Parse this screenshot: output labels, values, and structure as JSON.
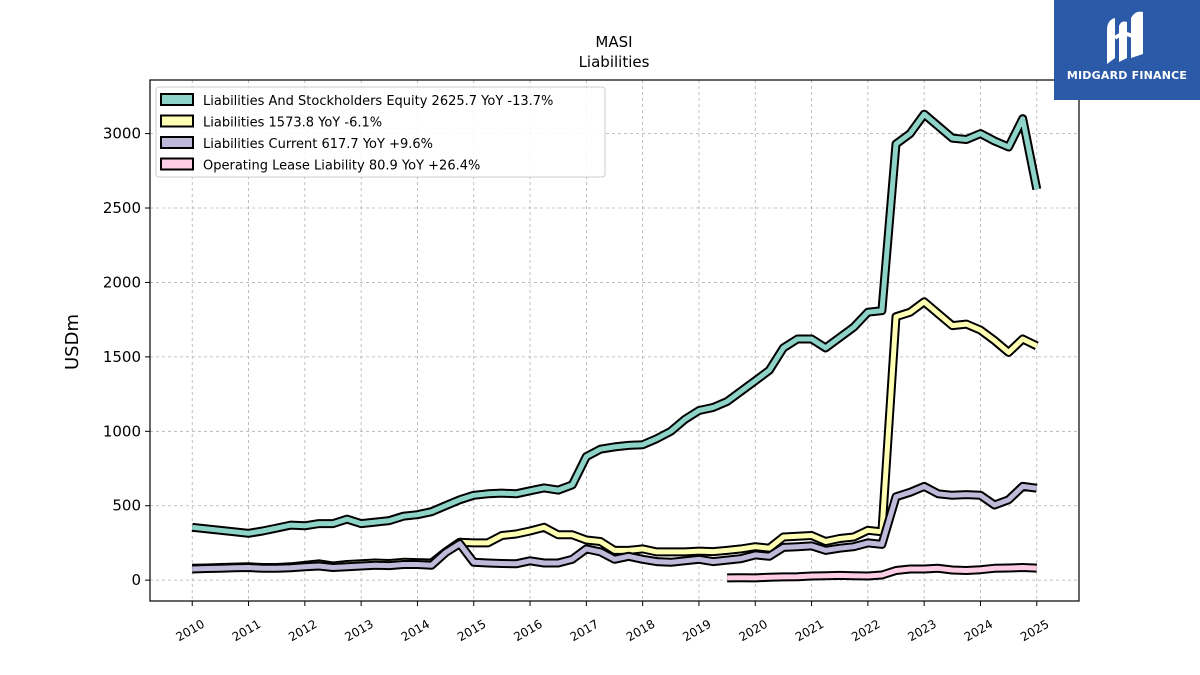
{
  "brand": {
    "name": "MIDGARD FINANCE",
    "color": "#2b5aa8"
  },
  "chart_data": {
    "type": "line",
    "title": "MASI",
    "subtitle": "Liabilities",
    "ylabel": "USDm",
    "xlabel": "",
    "ylim": [
      -140,
      3360
    ],
    "xlim": [
      2009.25,
      2025.75
    ],
    "yticks": [
      0,
      500,
      1000,
      1500,
      2000,
      2500,
      3000
    ],
    "xticks": [
      "2010",
      "2011",
      "2012",
      "2013",
      "2014",
      "2015",
      "2016",
      "2017",
      "2018",
      "2019",
      "2020",
      "2021",
      "2022",
      "2023",
      "2024",
      "2025"
    ],
    "grid": true,
    "legend_position": "top-left",
    "series": [
      {
        "name": "Liabilities And Stockholders Equity",
        "legend_label": "Liabilities And Stockholders Equity  2625.7 YoY -13.7%",
        "color": "#8dd3c7",
        "x": [
          2010.0,
          2010.25,
          2010.5,
          2010.75,
          2011.0,
          2011.25,
          2011.5,
          2011.75,
          2012.0,
          2012.25,
          2012.5,
          2012.75,
          2013.0,
          2013.25,
          2013.5,
          2013.75,
          2014.0,
          2014.25,
          2014.5,
          2014.75,
          2015.0,
          2015.25,
          2015.5,
          2015.75,
          2016.0,
          2016.25,
          2016.5,
          2016.75,
          2017.0,
          2017.25,
          2017.5,
          2017.75,
          2018.0,
          2018.25,
          2018.5,
          2018.75,
          2019.0,
          2019.25,
          2019.5,
          2019.75,
          2020.0,
          2020.25,
          2020.5,
          2020.75,
          2021.0,
          2021.25,
          2021.5,
          2021.75,
          2022.0,
          2022.25,
          2022.5,
          2022.75,
          2023.0,
          2023.25,
          2023.5,
          2023.75,
          2024.0,
          2024.25,
          2024.5,
          2024.75,
          2025.0
        ],
        "values": [
          355,
          345,
          335,
          325,
          315,
          330,
          350,
          370,
          365,
          380,
          380,
          410,
          380,
          390,
          400,
          430,
          440,
          460,
          500,
          540,
          570,
          580,
          585,
          580,
          600,
          620,
          605,
          640,
          830,
          880,
          895,
          905,
          910,
          950,
          1000,
          1080,
          1140,
          1160,
          1200,
          1270,
          1340,
          1410,
          1560,
          1620,
          1620,
          1560,
          1630,
          1700,
          1800,
          1810,
          2930,
          3000,
          3130,
          3050,
          2970,
          2960,
          3000,
          2950,
          2910,
          3100,
          2625.7
        ]
      },
      {
        "name": "Liabilities",
        "legend_label": "Liabilities  1573.8 YoY -6.1%",
        "color": "#ffffb3",
        "x": [
          2010.0,
          2010.25,
          2010.5,
          2010.75,
          2011.0,
          2011.25,
          2011.5,
          2011.75,
          2012.0,
          2012.25,
          2012.5,
          2012.75,
          2013.0,
          2013.25,
          2013.5,
          2013.75,
          2014.0,
          2014.25,
          2014.5,
          2014.75,
          2015.0,
          2015.25,
          2015.5,
          2015.75,
          2016.0,
          2016.25,
          2016.5,
          2016.75,
          2017.0,
          2017.25,
          2017.5,
          2017.75,
          2018.0,
          2018.25,
          2018.5,
          2018.75,
          2019.0,
          2019.25,
          2019.5,
          2019.75,
          2020.0,
          2020.25,
          2020.5,
          2020.75,
          2021.0,
          2021.25,
          2021.5,
          2021.75,
          2022.0,
          2022.25,
          2022.5,
          2022.75,
          2023.0,
          2023.25,
          2023.5,
          2023.75,
          2024.0,
          2024.25,
          2024.5,
          2024.75,
          2025.0
        ],
        "values": [
          80,
          82,
          85,
          88,
          90,
          85,
          85,
          90,
          100,
          110,
          95,
          105,
          110,
          115,
          112,
          120,
          118,
          115,
          190,
          255,
          250,
          250,
          300,
          310,
          330,
          355,
          305,
          305,
          270,
          260,
          200,
          200,
          210,
          190,
          190,
          190,
          195,
          192,
          200,
          210,
          225,
          215,
          290,
          295,
          300,
          260,
          280,
          290,
          335,
          325,
          1770,
          1800,
          1870,
          1790,
          1710,
          1720,
          1680,
          1610,
          1530,
          1620,
          1573.8
        ]
      },
      {
        "name": "Liabilities Current",
        "legend_label": "Liabilities Current  617.7 YoY +9.6%",
        "color": "#bebada",
        "x": [
          2010.0,
          2010.25,
          2010.5,
          2010.75,
          2011.0,
          2011.25,
          2011.5,
          2011.75,
          2012.0,
          2012.25,
          2012.5,
          2012.75,
          2013.0,
          2013.25,
          2013.5,
          2013.75,
          2014.0,
          2014.25,
          2014.5,
          2014.75,
          2015.0,
          2015.25,
          2015.5,
          2015.75,
          2016.0,
          2016.25,
          2016.5,
          2016.75,
          2017.0,
          2017.25,
          2017.5,
          2017.75,
          2018.0,
          2018.25,
          2018.5,
          2018.75,
          2019.0,
          2019.25,
          2019.5,
          2019.75,
          2020.0,
          2020.25,
          2020.5,
          2020.75,
          2021.0,
          2021.25,
          2021.5,
          2021.75,
          2022.0,
          2022.25,
          2022.5,
          2022.75,
          2023.0,
          2023.25,
          2023.5,
          2023.75,
          2024.0,
          2024.25,
          2024.5,
          2024.75,
          2025.0
        ],
        "values": [
          75,
          78,
          80,
          83,
          85,
          80,
          80,
          83,
          90,
          95,
          85,
          90,
          95,
          100,
          98,
          105,
          105,
          100,
          185,
          245,
          120,
          115,
          112,
          110,
          130,
          115,
          115,
          140,
          210,
          190,
          140,
          160,
          140,
          125,
          120,
          130,
          140,
          125,
          135,
          145,
          170,
          160,
          220,
          225,
          230,
          200,
          215,
          225,
          250,
          240,
          560,
          590,
          630,
          580,
          570,
          575,
          570,
          505,
          540,
          630,
          617.7
        ]
      },
      {
        "name": "Operating Lease Liability",
        "legend_label": "Operating Lease Liability  80.9 YoY +26.4%",
        "color": "#fccde5",
        "x": [
          2019.5,
          2019.75,
          2020.0,
          2020.25,
          2020.5,
          2020.75,
          2021.0,
          2021.25,
          2021.5,
          2021.75,
          2022.0,
          2022.25,
          2022.5,
          2022.75,
          2023.0,
          2023.25,
          2023.5,
          2023.75,
          2024.0,
          2024.25,
          2024.5,
          2024.75,
          2025.0
        ],
        "values": [
          15,
          16,
          15,
          20,
          22,
          23,
          28,
          30,
          32,
          30,
          28,
          35,
          65,
          75,
          75,
          80,
          68,
          65,
          70,
          80,
          82,
          85,
          80.9
        ]
      }
    ]
  }
}
